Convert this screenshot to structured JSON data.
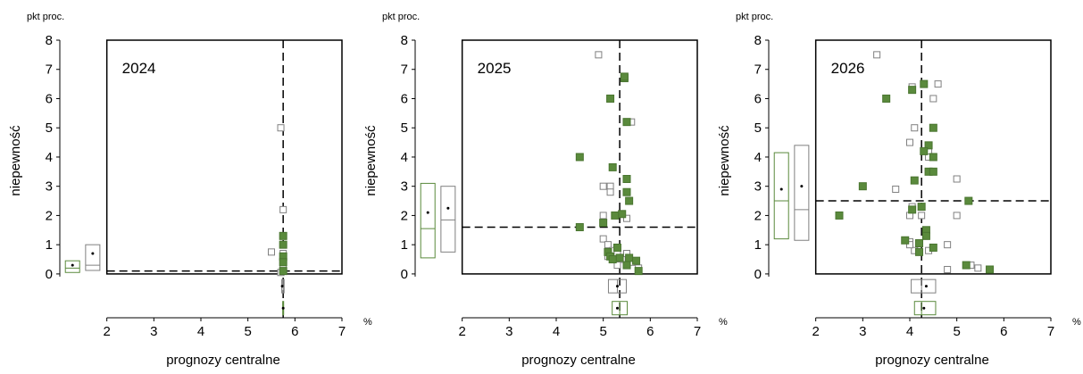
{
  "chart_data": [
    {
      "type": "scatter",
      "title": "2024",
      "y_unit": "pkt proc.",
      "x_unit": "%",
      "ylabel": "niepewność",
      "xlabel": "prognozy centralne",
      "xlim": [
        1,
        7
      ],
      "xticks": [
        2,
        3,
        4,
        5,
        6,
        7
      ],
      "ylim": [
        -1.5,
        8
      ],
      "yticks": [
        0,
        1,
        2,
        3,
        4,
        5,
        6,
        7,
        8
      ],
      "ref_x": 5.75,
      "ref_y": 0.1,
      "series": [
        {
          "color": "#808080",
          "filled": false,
          "x": [
            5.7,
            5.75,
            5.5,
            5.75,
            5.75,
            5.75,
            5.75,
            5.7
          ],
          "values": [
            5.0,
            2.2,
            0.75,
            0.7,
            0.5,
            0.3,
            0.1,
            0.05
          ]
        },
        {
          "color": "#5a8a3c",
          "filled": true,
          "x": [
            5.75,
            5.75,
            5.75,
            5.75,
            5.75
          ],
          "values": [
            1.3,
            1.0,
            0.6,
            0.4,
            0.1
          ]
        }
      ],
      "boxes": [
        {
          "color": "#5a8a3c",
          "y": {
            "low": 0.05,
            "median": 0.2,
            "high": 0.45,
            "mean": 0.3
          },
          "x": {
            "low": 5.74,
            "median": 5.75,
            "high": 5.76,
            "mean": 5.75
          }
        },
        {
          "color": "#808080",
          "y": {
            "low": 0.12,
            "median": 0.3,
            "high": 1.0,
            "mean": 0.7
          },
          "x": {
            "low": 5.72,
            "median": 5.75,
            "high": 5.77,
            "mean": 5.73
          }
        }
      ]
    },
    {
      "type": "scatter",
      "title": "2025",
      "y_unit": "pkt proc.",
      "x_unit": "%",
      "ylabel": "niepewność",
      "xlabel": "prognozy centralne",
      "xlim": [
        1,
        7
      ],
      "xticks": [
        2,
        3,
        4,
        5,
        6,
        7
      ],
      "ylim": [
        -1.5,
        8
      ],
      "yticks": [
        0,
        1,
        2,
        3,
        4,
        5,
        6,
        7,
        8
      ],
      "ref_x": 5.35,
      "ref_y": 1.6,
      "series": [
        {
          "color": "#808080",
          "filled": false,
          "x": [
            4.9,
            5.6,
            5.0,
            5.15,
            5.15,
            5.5,
            5.0,
            5.0,
            5.1,
            5.2,
            5.3,
            5.4,
            5.3,
            5.5,
            5.6,
            5.75,
            5.1
          ],
          "values": [
            7.5,
            5.2,
            3.0,
            3.0,
            2.8,
            1.9,
            2.0,
            1.2,
            1.0,
            0.8,
            0.7,
            0.5,
            0.3,
            0.7,
            0.4,
            0.2,
            0.6
          ]
        },
        {
          "color": "#5a8a3c",
          "filled": true,
          "x": [
            5.45,
            5.45,
            5.15,
            5.5,
            4.5,
            5.2,
            5.5,
            5.5,
            5.55,
            5.4,
            5.25,
            5.0,
            4.5,
            5.1,
            5.15,
            5.3,
            5.35,
            5.5,
            5.55,
            5.7,
            5.75,
            5.2
          ],
          "values": [
            6.7,
            6.75,
            6.0,
            5.2,
            4.0,
            3.65,
            3.25,
            2.8,
            2.5,
            2.05,
            2.0,
            1.75,
            1.6,
            0.75,
            0.6,
            0.9,
            0.55,
            0.3,
            0.55,
            0.45,
            0.1,
            0.5
          ]
        }
      ],
      "boxes": [
        {
          "color": "#5a8a3c",
          "y": {
            "low": 0.55,
            "median": 1.55,
            "high": 3.1,
            "mean": 2.1
          },
          "x": {
            "low": 5.19,
            "median": 5.35,
            "high": 5.51,
            "mean": 5.3
          }
        },
        {
          "color": "#808080",
          "y": {
            "low": 0.75,
            "median": 1.85,
            "high": 3.0,
            "mean": 2.25
          },
          "x": {
            "low": 5.11,
            "median": 5.3,
            "high": 5.49,
            "mean": 5.3
          }
        }
      ]
    },
    {
      "type": "scatter",
      "title": "2026",
      "y_unit": "pkt proc.",
      "x_unit": "%",
      "ylabel": "niepewność",
      "xlabel": "prognozy centralne",
      "xlim": [
        1,
        7
      ],
      "xticks": [
        2,
        3,
        4,
        5,
        6,
        7
      ],
      "ylim": [
        -1.5,
        8
      ],
      "yticks": [
        0,
        1,
        2,
        3,
        4,
        5,
        6,
        7,
        8
      ],
      "ref_x": 4.25,
      "ref_y": 2.5,
      "series": [
        {
          "color": "#808080",
          "filled": false,
          "x": [
            3.3,
            4.6,
            4.5,
            4.05,
            4.1,
            4.0,
            4.4,
            4.4,
            5.0,
            3.7,
            4.05,
            4.25,
            4.0,
            4.25,
            5.0,
            4.0,
            4.1,
            4.4,
            4.8,
            4.8,
            5.3,
            5.45,
            4.0
          ],
          "values": [
            7.5,
            6.5,
            6.0,
            6.4,
            5.0,
            4.5,
            4.2,
            4.0,
            3.25,
            2.9,
            2.3,
            2.3,
            2.0,
            2.0,
            2.0,
            1.1,
            0.8,
            0.8,
            1.0,
            0.15,
            0.3,
            0.2,
            1.0
          ]
        },
        {
          "color": "#5a8a3c",
          "filled": true,
          "x": [
            4.3,
            4.05,
            3.5,
            4.5,
            4.4,
            4.3,
            4.5,
            4.4,
            4.5,
            4.1,
            3.0,
            5.25,
            4.25,
            4.05,
            2.5,
            3.9,
            4.2,
            4.35,
            4.35,
            4.5,
            4.2,
            5.2,
            5.7
          ],
          "values": [
            6.5,
            6.3,
            6.0,
            5.0,
            4.4,
            4.2,
            4.0,
            3.5,
            3.5,
            3.2,
            3.0,
            2.5,
            2.3,
            2.2,
            2.0,
            1.15,
            1.05,
            1.5,
            1.3,
            0.9,
            0.75,
            0.3,
            0.15
          ]
        }
      ],
      "boxes": [
        {
          "color": "#5a8a3c",
          "y": {
            "low": 1.2,
            "median": 2.5,
            "high": 4.15,
            "mean": 2.9
          },
          "x": {
            "low": 4.1,
            "median": 4.25,
            "high": 4.55,
            "mean": 4.3
          }
        },
        {
          "color": "#808080",
          "y": {
            "low": 1.15,
            "median": 2.2,
            "high": 4.4,
            "mean": 3.0
          },
          "x": {
            "low": 4.03,
            "median": 4.25,
            "high": 4.55,
            "mean": 4.35
          }
        }
      ]
    }
  ]
}
